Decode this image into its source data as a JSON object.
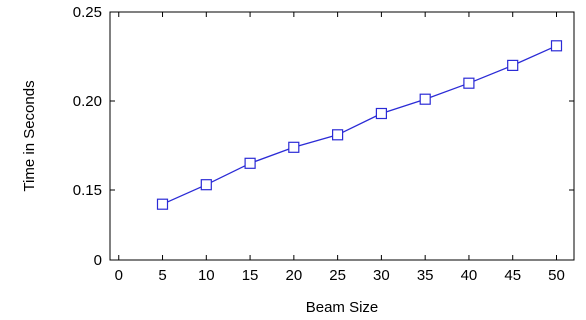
{
  "chart_data": {
    "type": "line",
    "title": "",
    "xlabel": "Beam Size",
    "ylabel": "Time in Seconds",
    "x_ticks": [
      "0",
      "5",
      "10",
      "15",
      "20",
      "25",
      "30",
      "35",
      "40",
      "45",
      "50"
    ],
    "y_ticks": [
      "0",
      "0.15",
      "0.20",
      "0.25"
    ],
    "xlim": [
      -1,
      52
    ],
    "y_axis_note": "broken axis: 0 shown at bottom, continuous scale from 0.15 to 0.25",
    "grid": false,
    "legend": "none",
    "series": [
      {
        "color": "#2b2bd6",
        "marker": "square-open",
        "x": [
          5,
          10,
          15,
          20,
          25,
          30,
          35,
          40,
          45,
          50
        ],
        "y": [
          0.142,
          0.153,
          0.165,
          0.174,
          0.181,
          0.193,
          0.201,
          0.21,
          0.22,
          0.231
        ]
      }
    ]
  }
}
